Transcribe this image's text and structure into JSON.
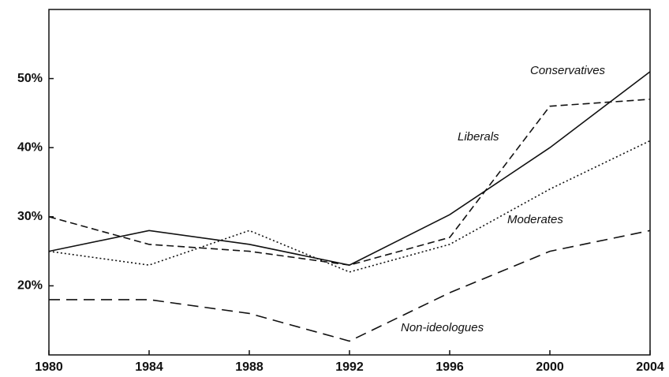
{
  "chart_data": {
    "type": "line",
    "x": [
      1980,
      1984,
      1988,
      1992,
      1996,
      2000,
      2004
    ],
    "xlim": [
      1980,
      2004
    ],
    "xticks": [
      1980,
      1984,
      1988,
      1992,
      1996,
      2000,
      2004
    ],
    "ylim": [
      10,
      60
    ],
    "yticks": [
      {
        "value": 20,
        "label": "20%"
      },
      {
        "value": 30,
        "label": "30%"
      },
      {
        "value": 40,
        "label": "40%"
      },
      {
        "value": 50,
        "label": "50%"
      }
    ],
    "series": [
      {
        "name": "Conservatives",
        "color": "#111111",
        "dash": "solid",
        "values": [
          25,
          28,
          26,
          23,
          30.3,
          40,
          51
        ]
      },
      {
        "name": "Liberals",
        "color": "#111111",
        "dash": "dashed",
        "values": [
          30,
          26,
          25,
          23,
          27,
          46,
          47
        ]
      },
      {
        "name": "Moderates",
        "color": "#111111",
        "dash": "dotted",
        "values": [
          25,
          23,
          28,
          22,
          26,
          34,
          41
        ]
      },
      {
        "name": "Non-ideologues",
        "color": "#111111",
        "dash": "long-dashed",
        "values": [
          18,
          18,
          16,
          12,
          19,
          25,
          28
        ]
      }
    ]
  }
}
